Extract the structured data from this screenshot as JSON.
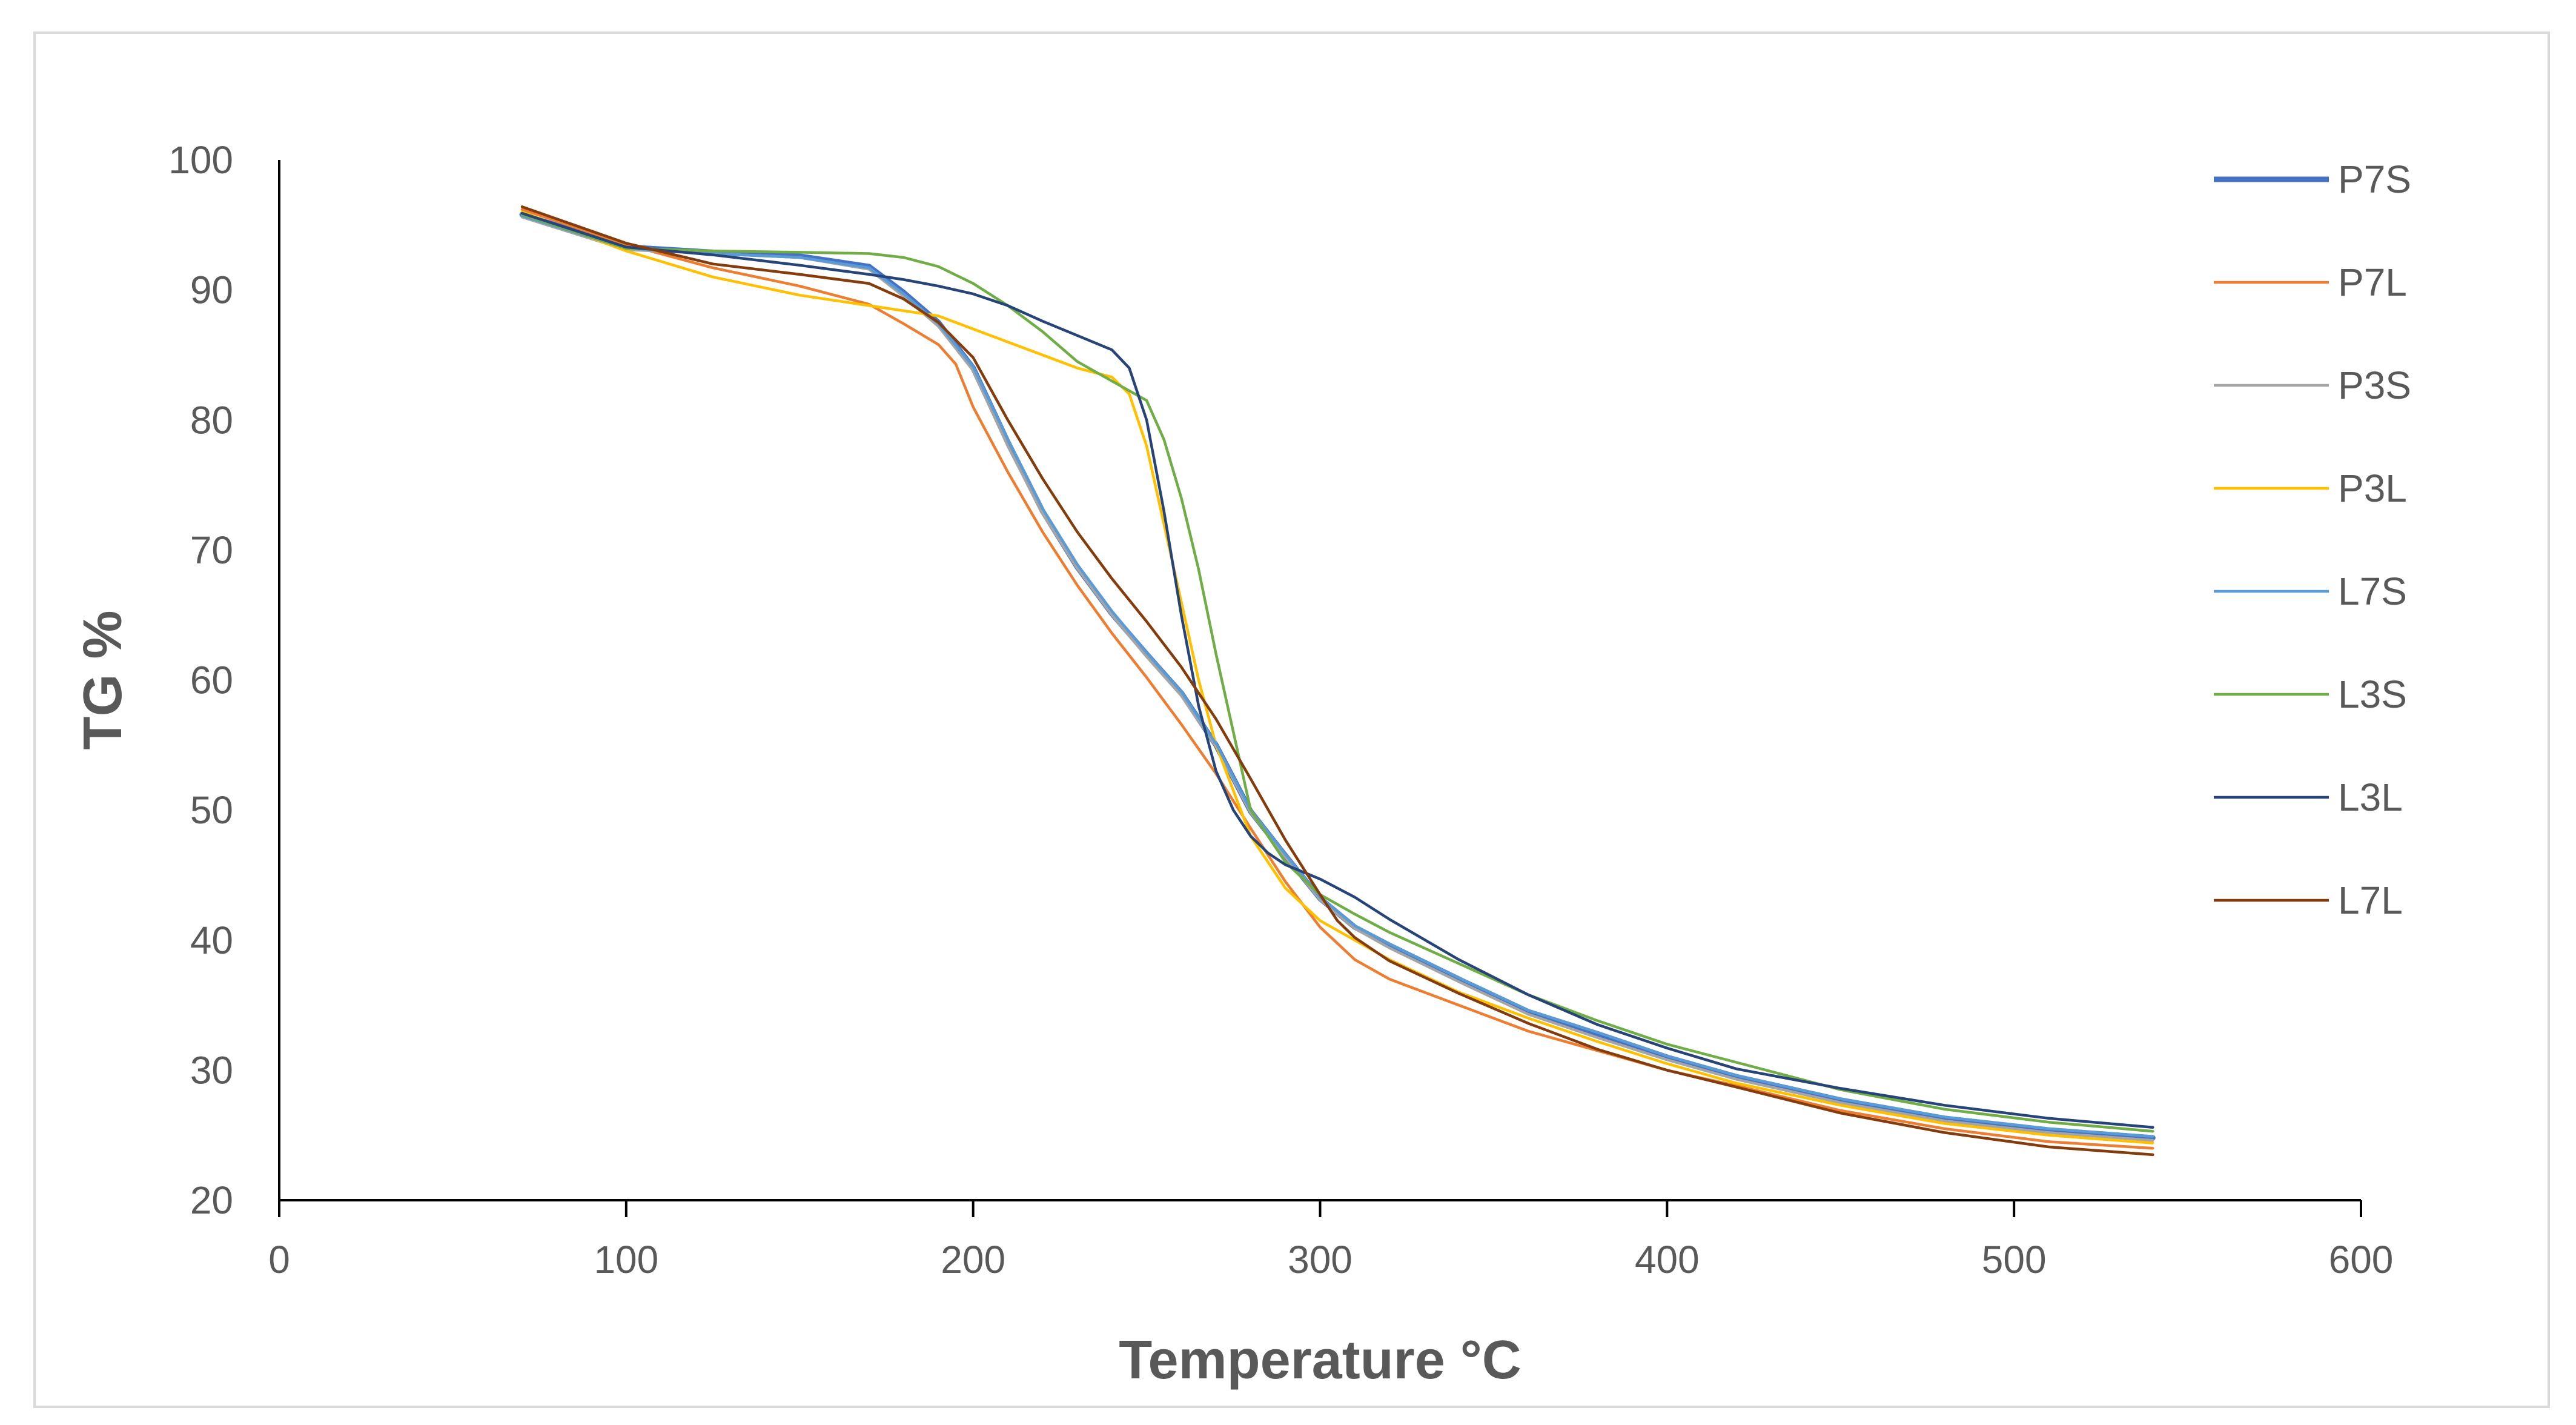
{
  "chart_data": {
    "type": "line",
    "title": "",
    "xlabel": "Temperature °C",
    "ylabel": "TG %",
    "xlim": [
      0,
      600
    ],
    "ylim": [
      20,
      100
    ],
    "x_ticks": [
      0,
      100,
      200,
      300,
      400,
      500,
      600
    ],
    "y_ticks": [
      20,
      30,
      40,
      50,
      60,
      70,
      80,
      90,
      100
    ],
    "grid": false,
    "legend_position": "right",
    "series": [
      {
        "name": "P7S",
        "color": "#4472c4",
        "emphasis": true,
        "x": [
          70,
          100,
          125,
          150,
          170,
          180,
          190,
          200,
          210,
          220,
          230,
          240,
          250,
          260,
          270,
          280,
          290,
          300,
          310,
          320,
          340,
          360,
          380,
          400,
          420,
          450,
          480,
          510,
          540
        ],
        "y": [
          95.8,
          93.3,
          92.9,
          92.6,
          91.8,
          89.8,
          87.5,
          84.0,
          78.3,
          73.0,
          68.7,
          65.1,
          62.0,
          59.0,
          55.0,
          49.9,
          46.5,
          43.2,
          41.0,
          39.6,
          37.0,
          34.5,
          32.8,
          31.0,
          29.5,
          27.7,
          26.3,
          25.4,
          24.8
        ]
      },
      {
        "name": "P7L",
        "color": "#ed7d31",
        "x": [
          70,
          100,
          125,
          150,
          170,
          180,
          190,
          195,
          200,
          210,
          220,
          230,
          240,
          250,
          260,
          270,
          280,
          290,
          300,
          310,
          320,
          340,
          360,
          380,
          400,
          420,
          450,
          480,
          510,
          540
        ],
        "y": [
          96.2,
          93.5,
          91.7,
          90.3,
          88.9,
          87.4,
          85.8,
          84.3,
          81.0,
          76.0,
          71.4,
          67.3,
          63.6,
          60.2,
          56.6,
          52.8,
          48.6,
          44.5,
          41.0,
          38.5,
          37.0,
          35.0,
          33.0,
          31.5,
          30.0,
          28.8,
          26.9,
          25.5,
          24.5,
          24.0
        ]
      },
      {
        "name": "P3S",
        "color": "#a5a5a5",
        "x": [
          70,
          100,
          125,
          150,
          170,
          180,
          190,
          200,
          210,
          220,
          230,
          240,
          250,
          260,
          270,
          280,
          290,
          300,
          310,
          320,
          340,
          360,
          380,
          400,
          420,
          450,
          480,
          510,
          540
        ],
        "y": [
          95.6,
          93.1,
          92.8,
          92.5,
          91.6,
          89.5,
          87.2,
          83.8,
          78.0,
          72.8,
          68.6,
          65.0,
          61.8,
          58.8,
          54.9,
          49.8,
          46.4,
          43.1,
          40.9,
          39.4,
          36.8,
          34.3,
          32.5,
          30.8,
          29.3,
          27.5,
          26.1,
          25.2,
          24.6
        ]
      },
      {
        "name": "P3L",
        "color": "#ffc000",
        "x": [
          70,
          100,
          125,
          150,
          170,
          190,
          200,
          210,
          220,
          230,
          240,
          245,
          250,
          255,
          260,
          265,
          270,
          280,
          290,
          300,
          310,
          320,
          340,
          360,
          380,
          400,
          420,
          450,
          480,
          510,
          540
        ],
        "y": [
          96.0,
          93.0,
          91.0,
          89.6,
          88.8,
          88.0,
          87.0,
          86.0,
          85.0,
          84.0,
          83.3,
          82.0,
          78.0,
          72.0,
          66.0,
          60.0,
          55.0,
          48.0,
          44.0,
          41.5,
          40.0,
          38.5,
          36.0,
          34.0,
          32.2,
          30.5,
          29.0,
          27.3,
          25.9,
          25.0,
          24.4
        ]
      },
      {
        "name": "L7S",
        "color": "#5b9bd5",
        "x": [
          70,
          100,
          125,
          150,
          170,
          180,
          190,
          200,
          210,
          220,
          230,
          240,
          250,
          260,
          270,
          280,
          290,
          300,
          310,
          320,
          340,
          360,
          380,
          400,
          420,
          450,
          480,
          510,
          540
        ],
        "y": [
          95.7,
          93.2,
          92.8,
          92.5,
          91.7,
          89.7,
          87.4,
          84.1,
          78.5,
          73.2,
          68.9,
          65.3,
          62.1,
          59.1,
          55.1,
          50.0,
          46.6,
          43.3,
          41.1,
          39.7,
          37.1,
          34.6,
          32.9,
          31.1,
          29.6,
          27.8,
          26.4,
          25.5,
          24.9
        ]
      },
      {
        "name": "L3S",
        "color": "#70ad47",
        "x": [
          70,
          100,
          125,
          150,
          170,
          180,
          190,
          200,
          210,
          220,
          230,
          240,
          250,
          255,
          260,
          265,
          270,
          275,
          280,
          290,
          300,
          310,
          320,
          340,
          360,
          380,
          400,
          420,
          450,
          480,
          510,
          540
        ],
        "y": [
          95.8,
          93.2,
          93.0,
          92.9,
          92.8,
          92.5,
          91.8,
          90.5,
          88.8,
          86.8,
          84.5,
          83.0,
          81.5,
          78.5,
          74.0,
          68.5,
          62.0,
          56.0,
          50.0,
          46.0,
          43.5,
          42.0,
          40.6,
          38.2,
          35.8,
          33.8,
          32.0,
          30.6,
          28.5,
          27.0,
          26.0,
          25.3
        ]
      },
      {
        "name": "L3L",
        "color": "#264478",
        "x": [
          70,
          100,
          125,
          150,
          170,
          180,
          190,
          200,
          210,
          220,
          230,
          240,
          245,
          250,
          255,
          260,
          265,
          270,
          275,
          280,
          285,
          290,
          300,
          310,
          320,
          340,
          360,
          380,
          400,
          420,
          450,
          480,
          510,
          540
        ],
        "y": [
          95.9,
          93.3,
          92.7,
          91.9,
          91.2,
          90.8,
          90.3,
          89.7,
          88.8,
          87.6,
          86.5,
          85.4,
          84.0,
          80.0,
          73.0,
          65.0,
          58.0,
          53.0,
          50.0,
          48.0,
          46.7,
          45.8,
          44.7,
          43.3,
          41.6,
          38.5,
          35.8,
          33.5,
          31.7,
          30.1,
          28.6,
          27.3,
          26.3,
          25.6
        ]
      },
      {
        "name": "L7L",
        "color": "#843c0c",
        "x": [
          70,
          100,
          125,
          150,
          170,
          180,
          190,
          200,
          210,
          220,
          230,
          240,
          250,
          260,
          270,
          280,
          290,
          300,
          305,
          310,
          320,
          340,
          360,
          380,
          400,
          420,
          450,
          480,
          510,
          540
        ],
        "y": [
          96.4,
          93.6,
          92.0,
          91.2,
          90.5,
          89.3,
          87.5,
          84.8,
          80.0,
          75.5,
          71.4,
          67.8,
          64.5,
          61.0,
          57.0,
          52.4,
          47.7,
          43.5,
          41.5,
          40.2,
          38.4,
          35.9,
          33.6,
          31.6,
          30.0,
          28.7,
          26.7,
          25.2,
          24.1,
          23.5
        ]
      }
    ]
  }
}
